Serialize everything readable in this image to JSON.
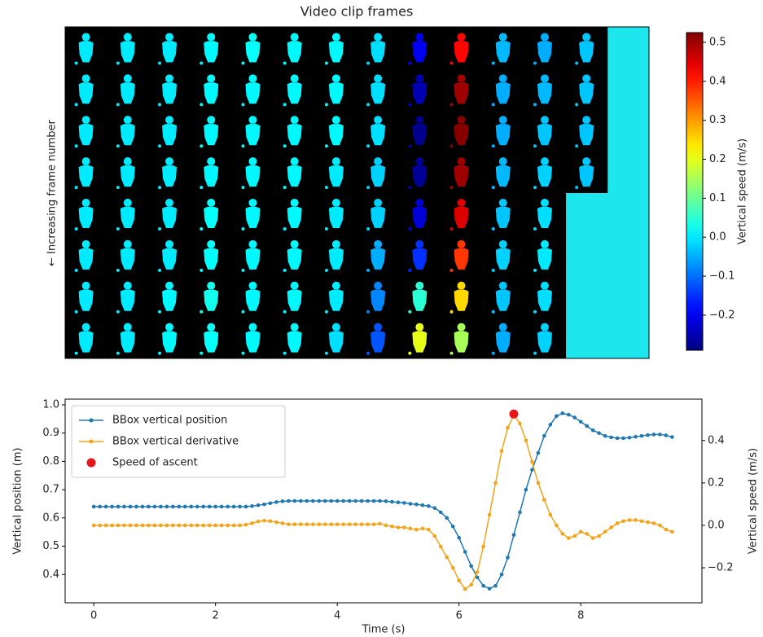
{
  "chart_data": [
    {
      "type": "frames",
      "title": "Video clip frames",
      "ylabel": "← Increasing frame number",
      "values": [
        0,
        0,
        0,
        0,
        0,
        0,
        0,
        0,
        0,
        0,
        0,
        0,
        0,
        0,
        0,
        0,
        0,
        0,
        0,
        0,
        0,
        0,
        0.01,
        0.01,
        0.01,
        0.01,
        0.01,
        0.01,
        0.02,
        0.02,
        0.03,
        0.02,
        0.02,
        0.01,
        0.01,
        0.01,
        0.01,
        0.01,
        0.01,
        0.01,
        0.01,
        0.01,
        0.01,
        0.01,
        0.01,
        0.01,
        0.01,
        0.01,
        0.01,
        0.01,
        0.01,
        0,
        0,
        0,
        0,
        -0.01,
        -0.01,
        -0.01,
        -0.01,
        -0.02,
        -0.02,
        -0.05,
        -0.08,
        -0.12,
        -0.2,
        -0.25,
        -0.28,
        -0.27,
        -0.22,
        -0.15,
        0.05,
        0.2,
        0.42,
        0.5,
        0.52,
        0.5,
        0.45,
        0.38,
        0.25,
        0.15,
        -0.04,
        -0.05,
        -0.05,
        -0.04,
        -0.03,
        -0.02,
        -0.03,
        -0.05,
        -0.05,
        -0.04,
        -0.03,
        -0.02,
        -0.01,
        0,
        -0.01,
        -0.02,
        -0.03,
        -0.03,
        -0.03,
        -0.03
      ],
      "colorbar": {
        "label": "Vertical speed (m/s)",
        "cmap": "jet",
        "lim": [
          -0.29,
          0.525
        ],
        "ticks": [
          {
            "value": -0.2,
            "label": "−0.2"
          },
          {
            "value": -0.1,
            "label": "−0.1"
          },
          {
            "value": 0,
            "label": "0.0"
          },
          0.1,
          0.2,
          0.3,
          0.4,
          0.5
        ]
      }
    },
    {
      "type": "line",
      "xlabel": "Time (s)",
      "ylabel": "Vertical position (m)",
      "y2label": "Vertical speed (m/s)",
      "x": [
        0,
        0.1,
        0.2,
        0.3,
        0.4,
        0.5,
        0.6,
        0.7,
        0.8,
        0.9,
        1,
        1.1,
        1.2,
        1.3,
        1.4,
        1.5,
        1.6,
        1.7,
        1.8,
        1.9,
        2,
        2.1,
        2.2,
        2.3,
        2.4,
        2.5,
        2.6,
        2.7,
        2.8,
        2.9,
        3,
        3.1,
        3.2,
        3.3,
        3.4,
        3.5,
        3.6,
        3.7,
        3.8,
        3.9,
        4,
        4.1,
        4.2,
        4.3,
        4.4,
        4.5,
        4.6,
        4.7,
        4.8,
        4.9,
        5,
        5.1,
        5.2,
        5.3,
        5.4,
        5.5,
        5.6,
        5.7,
        5.8,
        5.9,
        6,
        6.1,
        6.2,
        6.3,
        6.4,
        6.5,
        6.6,
        6.7,
        6.8,
        6.9,
        7,
        7.1,
        7.2,
        7.3,
        7.4,
        7.5,
        7.6,
        7.7,
        7.8,
        7.9,
        8,
        8.1,
        8.2,
        8.3,
        8.4,
        8.5,
        8.6,
        8.7,
        8.8,
        8.9,
        9,
        9.1,
        9.2,
        9.3,
        9.4,
        9.5
      ],
      "xlim": [
        -0.47,
        9.99
      ],
      "xticks": [
        0,
        2,
        4,
        6,
        8
      ],
      "ylim": [
        0.3,
        1.02
      ],
      "yticks": [
        0.4,
        0.5,
        0.6,
        0.7,
        0.8,
        0.9,
        {
          "value": 1,
          "label": "1.0"
        }
      ],
      "y2lim": [
        -0.365,
        0.595
      ],
      "y2ticks": [
        {
          "value": -0.2,
          "label": "−0.2"
        },
        {
          "value": 0,
          "label": "0.0"
        },
        0.2,
        0.4
      ],
      "legend": "upper left",
      "series": [
        {
          "name": "BBox vertical position",
          "color": "#1f77b4",
          "values": [
            0.64,
            0.64,
            0.64,
            0.64,
            0.64,
            0.64,
            0.64,
            0.64,
            0.64,
            0.64,
            0.64,
            0.64,
            0.64,
            0.64,
            0.64,
            0.64,
            0.64,
            0.64,
            0.64,
            0.64,
            0.64,
            0.64,
            0.64,
            0.64,
            0.64,
            0.64,
            0.642,
            0.645,
            0.648,
            0.652,
            0.656,
            0.659,
            0.66,
            0.66,
            0.66,
            0.66,
            0.66,
            0.66,
            0.66,
            0.66,
            0.66,
            0.66,
            0.66,
            0.66,
            0.66,
            0.66,
            0.66,
            0.66,
            0.659,
            0.657,
            0.655,
            0.653,
            0.65,
            0.648,
            0.645,
            0.642,
            0.635,
            0.62,
            0.6,
            0.57,
            0.53,
            0.48,
            0.43,
            0.39,
            0.36,
            0.35,
            0.36,
            0.4,
            0.46,
            0.54,
            0.62,
            0.7,
            0.77,
            0.83,
            0.89,
            0.93,
            0.96,
            0.97,
            0.965,
            0.955,
            0.94,
            0.925,
            0.91,
            0.9,
            0.89,
            0.885,
            0.882,
            0.882,
            0.884,
            0.887,
            0.89,
            0.893,
            0.895,
            0.895,
            0.892,
            0.886
          ]
        },
        {
          "name": "BBox vertical derivative",
          "color": "#f5a31a",
          "axis": "y2",
          "values": [
            0,
            0,
            0,
            0,
            0,
            0,
            0,
            0,
            0,
            0,
            0,
            0,
            0,
            0,
            0,
            0,
            0,
            0,
            0,
            0,
            0,
            0,
            0,
            0,
            0,
            0.003,
            0.01,
            0.018,
            0.022,
            0.02,
            0.015,
            0.01,
            0.005,
            0.005,
            0.005,
            0.005,
            0.005,
            0.005,
            0.005,
            0.005,
            0.005,
            0.005,
            0.005,
            0.005,
            0.005,
            0.005,
            0.005,
            0.008,
            0,
            -0.005,
            -0.01,
            -0.01,
            -0.015,
            -0.02,
            -0.015,
            -0.02,
            -0.05,
            -0.1,
            -0.15,
            -0.2,
            -0.26,
            -0.3,
            -0.28,
            -0.22,
            -0.1,
            0.05,
            0.2,
            0.35,
            0.46,
            0.52,
            0.48,
            0.4,
            0.3,
            0.2,
            0.12,
            0.05,
            0,
            -0.04,
            -0.06,
            -0.05,
            -0.03,
            -0.04,
            -0.06,
            -0.05,
            -0.03,
            -0.01,
            0.01,
            0.02,
            0.025,
            0.025,
            0.02,
            0.015,
            0.01,
            0,
            -0.02,
            -0.03
          ]
        },
        {
          "name": "Speed of ascent",
          "color": "#e8161b",
          "axis": "y2",
          "type": "scatter",
          "x": [
            6.9
          ],
          "values": [
            0.525
          ]
        }
      ]
    }
  ]
}
